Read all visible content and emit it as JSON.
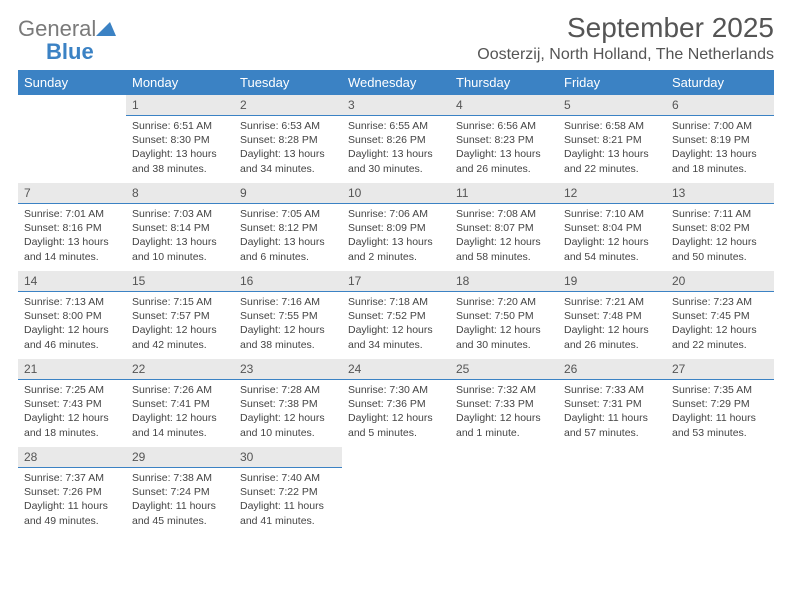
{
  "brand": {
    "name1": "General",
    "name2": "Blue"
  },
  "title": "September 2025",
  "location": "Oosterzij, North Holland, The Netherlands",
  "colors": {
    "header_bg": "#3b82c4",
    "daynum_bg": "#e9e9e9",
    "border": "#3b82c4",
    "text": "#444444"
  },
  "weekdays": [
    "Sunday",
    "Monday",
    "Tuesday",
    "Wednesday",
    "Thursday",
    "Friday",
    "Saturday"
  ],
  "start_offset": 1,
  "days": [
    {
      "n": "1",
      "sunrise": "6:51 AM",
      "sunset": "8:30 PM",
      "daylight": "13 hours and 38 minutes."
    },
    {
      "n": "2",
      "sunrise": "6:53 AM",
      "sunset": "8:28 PM",
      "daylight": "13 hours and 34 minutes."
    },
    {
      "n": "3",
      "sunrise": "6:55 AM",
      "sunset": "8:26 PM",
      "daylight": "13 hours and 30 minutes."
    },
    {
      "n": "4",
      "sunrise": "6:56 AM",
      "sunset": "8:23 PM",
      "daylight": "13 hours and 26 minutes."
    },
    {
      "n": "5",
      "sunrise": "6:58 AM",
      "sunset": "8:21 PM",
      "daylight": "13 hours and 22 minutes."
    },
    {
      "n": "6",
      "sunrise": "7:00 AM",
      "sunset": "8:19 PM",
      "daylight": "13 hours and 18 minutes."
    },
    {
      "n": "7",
      "sunrise": "7:01 AM",
      "sunset": "8:16 PM",
      "daylight": "13 hours and 14 minutes."
    },
    {
      "n": "8",
      "sunrise": "7:03 AM",
      "sunset": "8:14 PM",
      "daylight": "13 hours and 10 minutes."
    },
    {
      "n": "9",
      "sunrise": "7:05 AM",
      "sunset": "8:12 PM",
      "daylight": "13 hours and 6 minutes."
    },
    {
      "n": "10",
      "sunrise": "7:06 AM",
      "sunset": "8:09 PM",
      "daylight": "13 hours and 2 minutes."
    },
    {
      "n": "11",
      "sunrise": "7:08 AM",
      "sunset": "8:07 PM",
      "daylight": "12 hours and 58 minutes."
    },
    {
      "n": "12",
      "sunrise": "7:10 AM",
      "sunset": "8:04 PM",
      "daylight": "12 hours and 54 minutes."
    },
    {
      "n": "13",
      "sunrise": "7:11 AM",
      "sunset": "8:02 PM",
      "daylight": "12 hours and 50 minutes."
    },
    {
      "n": "14",
      "sunrise": "7:13 AM",
      "sunset": "8:00 PM",
      "daylight": "12 hours and 46 minutes."
    },
    {
      "n": "15",
      "sunrise": "7:15 AM",
      "sunset": "7:57 PM",
      "daylight": "12 hours and 42 minutes."
    },
    {
      "n": "16",
      "sunrise": "7:16 AM",
      "sunset": "7:55 PM",
      "daylight": "12 hours and 38 minutes."
    },
    {
      "n": "17",
      "sunrise": "7:18 AM",
      "sunset": "7:52 PM",
      "daylight": "12 hours and 34 minutes."
    },
    {
      "n": "18",
      "sunrise": "7:20 AM",
      "sunset": "7:50 PM",
      "daylight": "12 hours and 30 minutes."
    },
    {
      "n": "19",
      "sunrise": "7:21 AM",
      "sunset": "7:48 PM",
      "daylight": "12 hours and 26 minutes."
    },
    {
      "n": "20",
      "sunrise": "7:23 AM",
      "sunset": "7:45 PM",
      "daylight": "12 hours and 22 minutes."
    },
    {
      "n": "21",
      "sunrise": "7:25 AM",
      "sunset": "7:43 PM",
      "daylight": "12 hours and 18 minutes."
    },
    {
      "n": "22",
      "sunrise": "7:26 AM",
      "sunset": "7:41 PM",
      "daylight": "12 hours and 14 minutes."
    },
    {
      "n": "23",
      "sunrise": "7:28 AM",
      "sunset": "7:38 PM",
      "daylight": "12 hours and 10 minutes."
    },
    {
      "n": "24",
      "sunrise": "7:30 AM",
      "sunset": "7:36 PM",
      "daylight": "12 hours and 5 minutes."
    },
    {
      "n": "25",
      "sunrise": "7:32 AM",
      "sunset": "7:33 PM",
      "daylight": "12 hours and 1 minute."
    },
    {
      "n": "26",
      "sunrise": "7:33 AM",
      "sunset": "7:31 PM",
      "daylight": "11 hours and 57 minutes."
    },
    {
      "n": "27",
      "sunrise": "7:35 AM",
      "sunset": "7:29 PM",
      "daylight": "11 hours and 53 minutes."
    },
    {
      "n": "28",
      "sunrise": "7:37 AM",
      "sunset": "7:26 PM",
      "daylight": "11 hours and 49 minutes."
    },
    {
      "n": "29",
      "sunrise": "7:38 AM",
      "sunset": "7:24 PM",
      "daylight": "11 hours and 45 minutes."
    },
    {
      "n": "30",
      "sunrise": "7:40 AM",
      "sunset": "7:22 PM",
      "daylight": "11 hours and 41 minutes."
    }
  ],
  "labels": {
    "sunrise": "Sunrise: ",
    "sunset": "Sunset: ",
    "daylight": "Daylight: "
  }
}
